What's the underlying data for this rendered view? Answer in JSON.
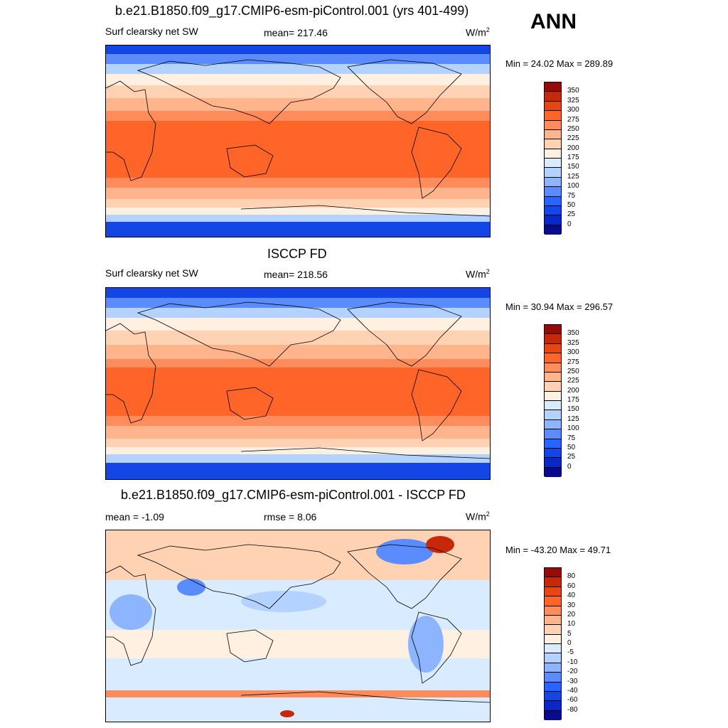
{
  "season": "ANN",
  "palette_abs": [
    "#0a0a8c",
    "#0a28c8",
    "#1446e6",
    "#2864ff",
    "#5a8cff",
    "#8cb4ff",
    "#b4d2ff",
    "#d8ebff",
    "#fff0e1",
    "#ffd2b4",
    "#ffb48c",
    "#ff8c5a",
    "#ff6428",
    "#e64614",
    "#c8280a",
    "#960a0a"
  ],
  "palette_diff": [
    "#0a0a8c",
    "#0a28c8",
    "#1446e6",
    "#2864ff",
    "#5a8cff",
    "#8cb4ff",
    "#b4d2ff",
    "#d8ebff",
    "#fff0e1",
    "#ffd2b4",
    "#ffb48c",
    "#ff8c5a",
    "#ff6428",
    "#e64614",
    "#c8280a",
    "#960a0a"
  ],
  "panels": [
    {
      "title": "b.e21.B1850.f09_g17.CMIP6-esm-piControl.001 (yrs 401-499)",
      "left_label": "Surf clearsky net SW",
      "center_label": "mean= 217.46",
      "units": "W/m",
      "units_sup": "2",
      "minmax": "Min =  24.02 Max = 289.89",
      "levels": [
        "350",
        "325",
        "300",
        "275",
        "250",
        "225",
        "200",
        "175",
        "150",
        "125",
        "100",
        "75",
        "50",
        "25",
        "0"
      ]
    },
    {
      "title": "ISCCP FD",
      "left_label": "Surf clearsky net SW",
      "center_label": "mean= 218.56",
      "units": "W/m",
      "units_sup": "2",
      "minmax": "Min =  30.94 Max = 296.57",
      "levels": [
        "350",
        "325",
        "300",
        "275",
        "250",
        "225",
        "200",
        "175",
        "150",
        "125",
        "100",
        "75",
        "50",
        "25",
        "0"
      ]
    },
    {
      "title": "b.e21.B1850.f09_g17.CMIP6-esm-piControl.001 - ISCCP FD",
      "left_label": "mean =  -1.09",
      "center_label": "rmse =   8.06",
      "units": "W/m",
      "units_sup": "2",
      "minmax": "Min = -43.20 Max =  49.71",
      "levels": [
        "80",
        "60",
        "40",
        "30",
        "20",
        "10",
        "5",
        "0",
        "-5",
        "-10",
        "-20",
        "-30",
        "-40",
        "-60",
        "-80"
      ]
    }
  ]
}
